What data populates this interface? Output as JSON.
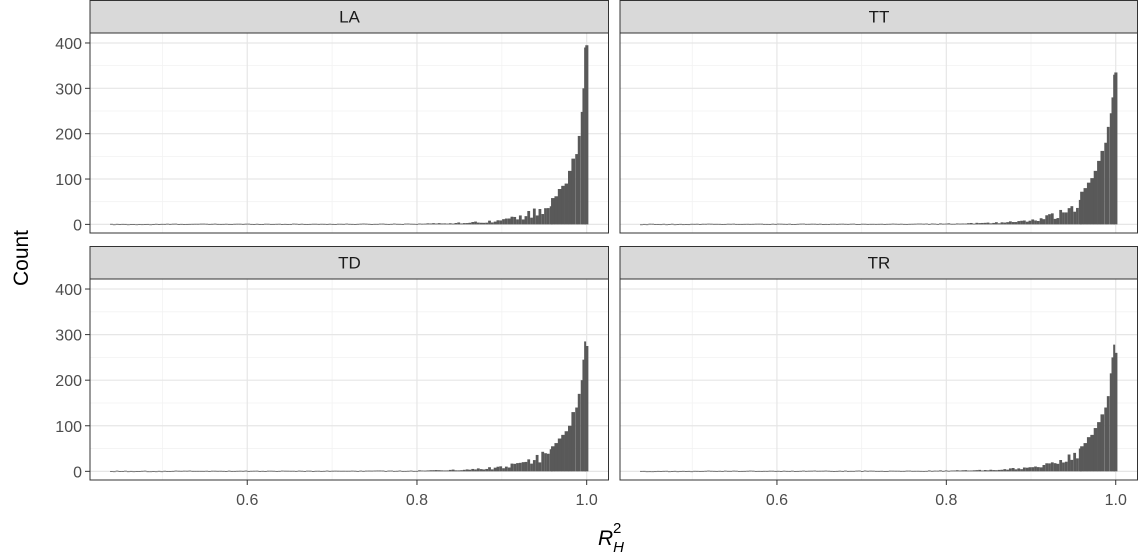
{
  "chart_data": {
    "type": "bar",
    "subtype": "faceted-histogram",
    "ylabel": "Count",
    "xlabel_parts": {
      "base": "R",
      "sub": "H",
      "sup": "2"
    },
    "xlim": [
      0.44,
      1.0
    ],
    "ylim": [
      0,
      400
    ],
    "x_ticks": [
      0.6,
      0.8,
      1.0
    ],
    "x_tick_labels": [
      "0.6",
      "0.8",
      "1.0"
    ],
    "y_ticks": [
      0,
      100,
      200,
      300,
      400
    ],
    "y_tick_labels": [
      "0",
      "100",
      "200",
      "300",
      "400"
    ],
    "grid": true,
    "bar_color": "#595959",
    "panels": [
      {
        "label": "LA",
        "bins": [
          {
            "x": 0.96,
            "count": 58
          },
          {
            "x": 0.964,
            "count": 62
          },
          {
            "x": 0.968,
            "count": 78
          },
          {
            "x": 0.972,
            "count": 85
          },
          {
            "x": 0.976,
            "count": 90
          },
          {
            "x": 0.98,
            "count": 118
          },
          {
            "x": 0.984,
            "count": 145
          },
          {
            "x": 0.988,
            "count": 155
          },
          {
            "x": 0.991,
            "count": 195
          },
          {
            "x": 0.994,
            "count": 248
          },
          {
            "x": 0.996,
            "count": 300
          },
          {
            "x": 0.998,
            "count": 390
          },
          {
            "x": 1.0,
            "count": 395
          }
        ]
      },
      {
        "label": "TT",
        "bins": [
          {
            "x": 0.96,
            "count": 72
          },
          {
            "x": 0.964,
            "count": 80
          },
          {
            "x": 0.968,
            "count": 92
          },
          {
            "x": 0.972,
            "count": 102
          },
          {
            "x": 0.976,
            "count": 118
          },
          {
            "x": 0.98,
            "count": 140
          },
          {
            "x": 0.984,
            "count": 162
          },
          {
            "x": 0.988,
            "count": 180
          },
          {
            "x": 0.991,
            "count": 215
          },
          {
            "x": 0.994,
            "count": 245
          },
          {
            "x": 0.996,
            "count": 280
          },
          {
            "x": 0.998,
            "count": 330
          },
          {
            "x": 1.0,
            "count": 335
          }
        ]
      },
      {
        "label": "TD",
        "bins": [
          {
            "x": 0.96,
            "count": 55
          },
          {
            "x": 0.964,
            "count": 62
          },
          {
            "x": 0.968,
            "count": 72
          },
          {
            "x": 0.972,
            "count": 80
          },
          {
            "x": 0.976,
            "count": 88
          },
          {
            "x": 0.98,
            "count": 100
          },
          {
            "x": 0.984,
            "count": 130
          },
          {
            "x": 0.988,
            "count": 140
          },
          {
            "x": 0.991,
            "count": 170
          },
          {
            "x": 0.994,
            "count": 200
          },
          {
            "x": 0.996,
            "count": 245
          },
          {
            "x": 0.998,
            "count": 285
          },
          {
            "x": 1.0,
            "count": 275
          }
        ]
      },
      {
        "label": "TR",
        "bins": [
          {
            "x": 0.96,
            "count": 55
          },
          {
            "x": 0.964,
            "count": 62
          },
          {
            "x": 0.968,
            "count": 75
          },
          {
            "x": 0.972,
            "count": 80
          },
          {
            "x": 0.976,
            "count": 95
          },
          {
            "x": 0.98,
            "count": 108
          },
          {
            "x": 0.984,
            "count": 125
          },
          {
            "x": 0.988,
            "count": 140
          },
          {
            "x": 0.991,
            "count": 165
          },
          {
            "x": 0.994,
            "count": 215
          },
          {
            "x": 0.996,
            "count": 250
          },
          {
            "x": 0.998,
            "count": 278
          },
          {
            "x": 1.0,
            "count": 260
          }
        ]
      }
    ]
  }
}
